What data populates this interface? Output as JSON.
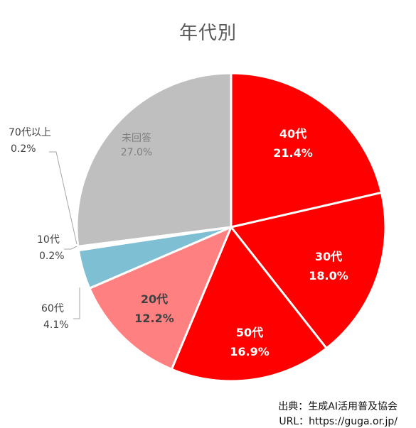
{
  "chart_data": {
    "type": "pie",
    "title": "年代別",
    "start_angle_deg": 0,
    "direction": "clockwise",
    "slices": [
      {
        "label": "40代",
        "value_text": "21.4%",
        "value": 21.4,
        "color": "#ff0000",
        "label_color": "#ffffff"
      },
      {
        "label": "30代",
        "value_text": "18.0%",
        "value": 18.0,
        "color": "#ff0000",
        "label_color": "#ffffff"
      },
      {
        "label": "50代",
        "value_text": "16.9%",
        "value": 16.9,
        "color": "#ff0000",
        "label_color": "#ffffff"
      },
      {
        "label": "20代",
        "value_text": "12.2%",
        "value": 12.2,
        "color": "#ff8080",
        "label_color": "#404040"
      },
      {
        "label": "60代",
        "value_text": "4.1%",
        "value": 4.1,
        "color": "#7fbfd4",
        "label_color": "#404040"
      },
      {
        "label": "10代",
        "value_text": "0.2%",
        "value": 0.2,
        "color": "#c9c9c9",
        "label_color": "#404040"
      },
      {
        "label": "70代以上",
        "value_text": "0.2%",
        "value": 0.2,
        "color": "#bfbfbf",
        "label_color": "#404040"
      },
      {
        "label": "未回答",
        "value_text": "27.0%",
        "value": 27.0,
        "color": "#bfbfbf",
        "label_color": "#7f7f7f"
      }
    ]
  },
  "source": {
    "line": "出典：生成AI活用普及協会",
    "url": "URL：https://guga.or.jp/"
  }
}
